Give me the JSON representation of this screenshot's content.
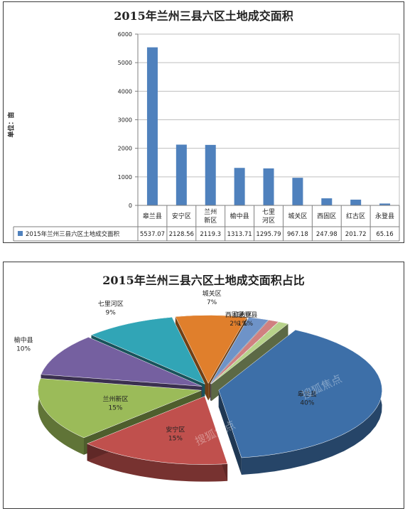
{
  "bar_panel": {
    "title": "2015年兰州三县六区土地成交面积",
    "ylabel": "单位：亩"
  },
  "pie_panel": {
    "title": "2015年兰州三县六区土地成交面积占比"
  },
  "chart_data": [
    {
      "type": "bar",
      "title": "2015年兰州三县六区土地成交面积",
      "ylabel": "单位：亩",
      "categories": [
        "皋兰县",
        "安宁区",
        "兰州新区",
        "榆中县",
        "七里河区",
        "城关区",
        "西固区",
        "红古区",
        "永登县"
      ],
      "series": [
        {
          "name": "2015年兰州三县六区土地成交面积",
          "values": [
            5537.07,
            2128.56,
            2119.3,
            1313.71,
            1295.79,
            967.18,
            247.98,
            201.72,
            65.16
          ],
          "labels": [
            "5537.07",
            "2128.56",
            "2119.3",
            "1313.71",
            "1295.79",
            "967.18",
            "247.98",
            "201.72",
            "65.16"
          ]
        }
      ],
      "yticks": [
        "0",
        "1000",
        "2000",
        "3000",
        "4000",
        "5000",
        "6000"
      ],
      "ylim": [
        0,
        6000
      ],
      "grid": true,
      "legend": "data-table-bottom",
      "color": "#4f81bd"
    },
    {
      "type": "pie",
      "title": "2015年兰州三县六区土地成交面积占比",
      "labels": [
        "皋兰县",
        "安宁区",
        "兰州新区",
        "榆中县",
        "七里河区",
        "城关区",
        "西固区",
        "红古区",
        "永登县"
      ],
      "percent_labels": [
        "40%",
        "15%",
        "15%",
        "10%",
        "9%",
        "7%",
        "2%",
        "1%",
        "1%"
      ],
      "values": [
        40,
        15,
        15,
        10,
        9,
        7,
        2,
        1,
        1
      ],
      "colors": [
        "#3d6fa8",
        "#c0504d",
        "#9bbb59",
        "#7560a0",
        "#31a5b6",
        "#e07f2c",
        "#6e93c8",
        "#d08080",
        "#b7d28a"
      ],
      "style": "3d-exploded",
      "watermark": "搜狐焦点"
    }
  ]
}
